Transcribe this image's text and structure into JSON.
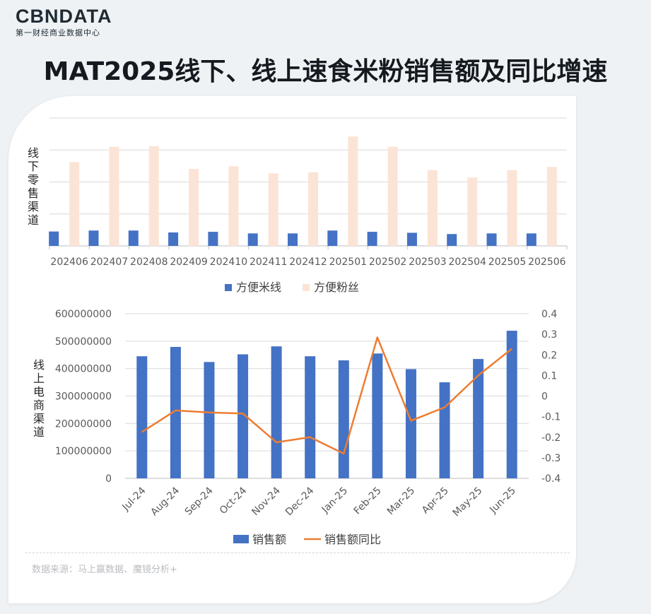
{
  "brand": {
    "logo_text": "CBNDATA",
    "logo_subtitle": "第一财经商业数据中心"
  },
  "page_title": "MAT2025线下、线上速食米粉销售额及同比增速",
  "source_note": "数据来源：马上赢数据、魔镜分析+",
  "colors": {
    "blue": "#4472c4",
    "peach": "#fbe4d6",
    "orange": "#ed7d31",
    "grid": "#d9d9d9"
  },
  "chart_data": [
    {
      "type": "bar",
      "ylabel": "线下零售渠道",
      "categories": [
        "202406",
        "202407",
        "202408",
        "202409",
        "202410",
        "202411",
        "202412",
        "202501",
        "202502",
        "202503",
        "202504",
        "202505",
        "202506"
      ],
      "ylim": [
        0,
        4
      ],
      "grid": true,
      "legend_position": "bottom",
      "series": [
        {
          "name": "方便米线",
          "values": [
            0.45,
            0.48,
            0.48,
            0.42,
            0.44,
            0.39,
            0.39,
            0.48,
            0.44,
            0.41,
            0.37,
            0.39,
            0.39
          ]
        },
        {
          "name": "方便粉丝",
          "values": [
            2.62,
            3.1,
            3.12,
            2.41,
            2.49,
            2.27,
            2.3,
            3.42,
            3.1,
            2.37,
            2.14,
            2.37,
            2.47
          ]
        }
      ]
    },
    {
      "type": "bar",
      "ylabel": "线上电商渠道",
      "categories": [
        "Jul-24",
        "Aug-24",
        "Sep-24",
        "Oct-24",
        "Nov-24",
        "Dec-24",
        "Jan-25",
        "Feb-25",
        "Mar-25",
        "Apr-25",
        "May-25",
        "Jun-25"
      ],
      "ylim": [
        0,
        600000000
      ],
      "y_ticks": [
        "0",
        "100000000",
        "200000000",
        "300000000",
        "400000000",
        "500000000",
        "600000000"
      ],
      "y2lim": [
        -0.4,
        0.4
      ],
      "y2_ticks": [
        "-0.4",
        "-0.3",
        "-0.2",
        "-0.1",
        "0",
        "0.1",
        "0.2",
        "0.3",
        "0.4"
      ],
      "grid": true,
      "legend_position": "bottom",
      "series": [
        {
          "name": "销售额",
          "type": "bar",
          "values": [
            445000000,
            479000000,
            424000000,
            452000000,
            481000000,
            445000000,
            430000000,
            455000000,
            398000000,
            350000000,
            435000000,
            538000000
          ]
        },
        {
          "name": "销售额同比",
          "type": "line",
          "axis": "right",
          "values": [
            -0.175,
            -0.07,
            -0.08,
            -0.085,
            -0.225,
            -0.2,
            -0.28,
            0.285,
            -0.12,
            -0.055,
            0.1,
            0.23
          ]
        }
      ]
    }
  ]
}
